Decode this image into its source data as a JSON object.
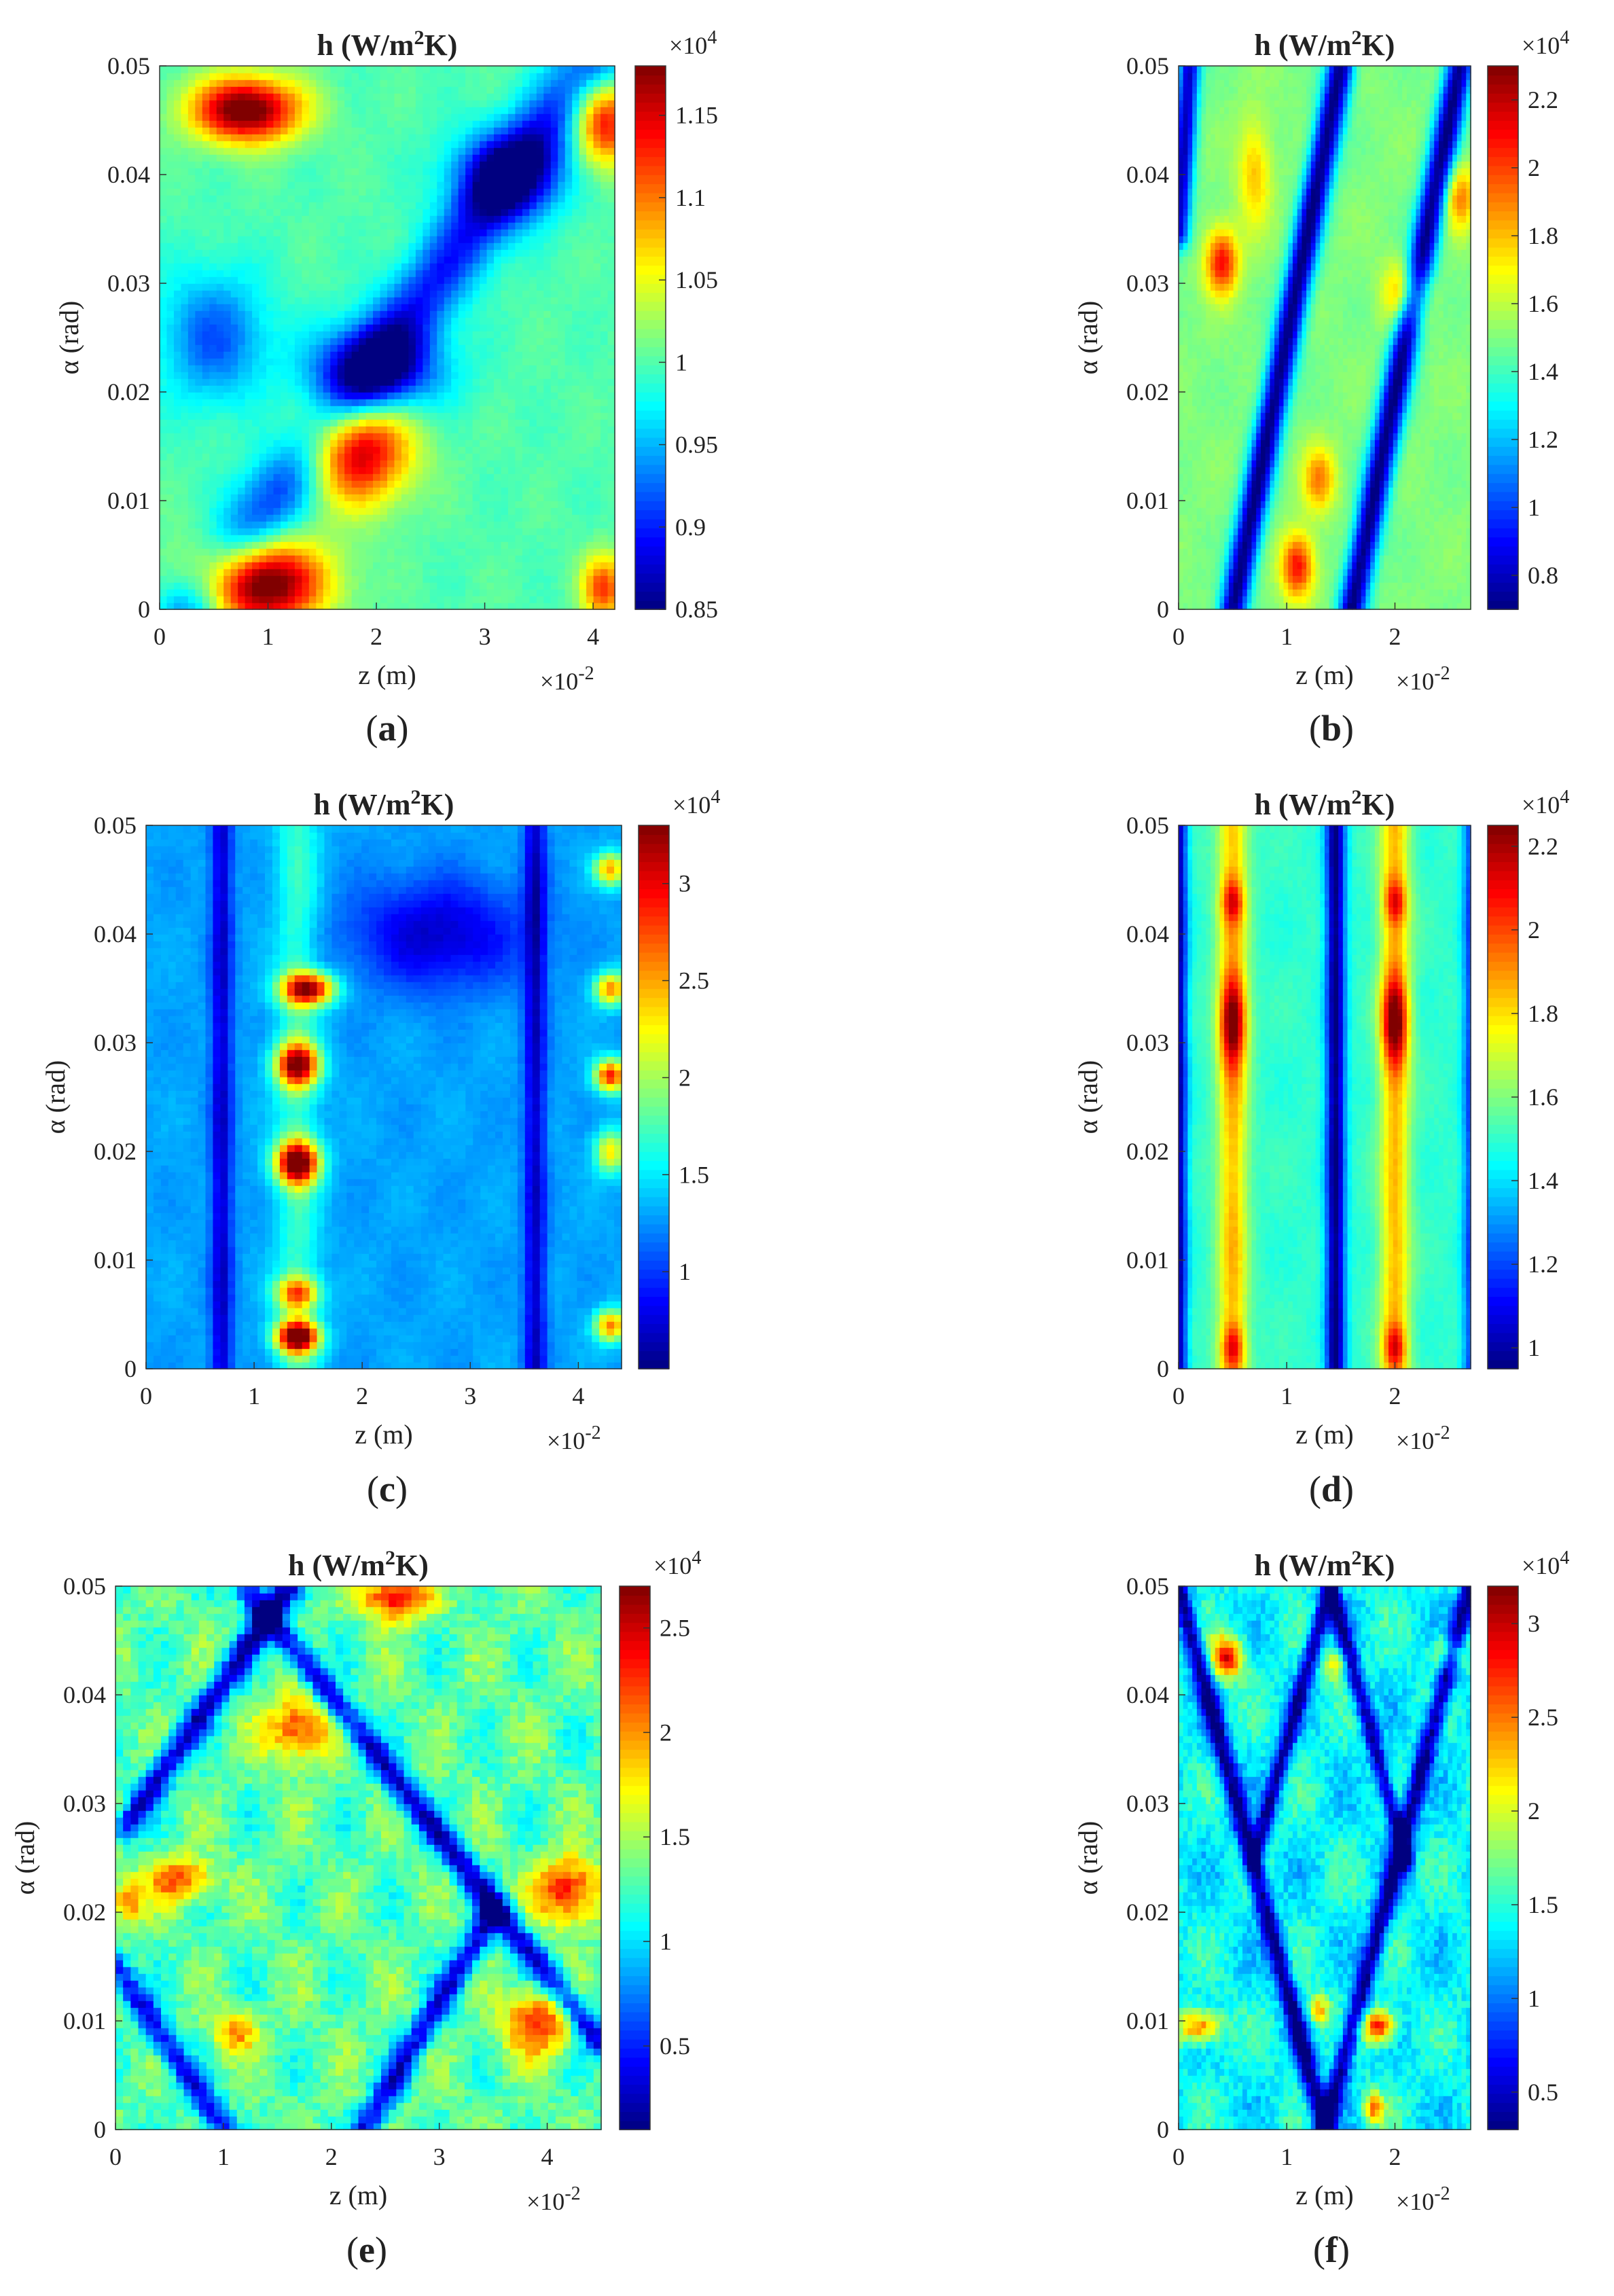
{
  "panels": [
    {
      "id": "a",
      "caption": "(a)",
      "caption_letter": "a",
      "title_prefix": "h (W/m",
      "title_sup": "2",
      "title_suffix": "K)",
      "xlabel": "z (m)",
      "ylabel": "α (rad)",
      "x_multiplier": "×10",
      "x_mult_exp": "-2",
      "cbar_multiplier": "×10",
      "cbar_mult_exp": "4",
      "chart_data": {
        "type": "heatmap",
        "xlim": [
          0,
          4.2
        ],
        "ylim": [
          0,
          0.05
        ],
        "clim": [
          0.85,
          1.18
        ],
        "xticks": [
          "0",
          "1",
          "2",
          "3",
          "4"
        ],
        "yticks": [
          "0",
          "0.01",
          "0.02",
          "0.03",
          "0.04",
          "0.05"
        ],
        "cbar_ticks": [
          "0.85",
          "0.9",
          "0.95",
          "1",
          "1.05",
          "1.1",
          "1.15"
        ],
        "pattern": "single diagonal low-h band with high-h lobes at z≈1 (α 0–0.02) and z≈0.8 (α≈0.047)",
        "base": 1.0,
        "features": [
          {
            "z": 0.9,
            "a": 0.0025,
            "v": 0.22,
            "sz": 0.6,
            "sa": 0.004
          },
          {
            "z": 1.8,
            "a": 0.015,
            "v": 0.18,
            "sz": 0.5,
            "sa": 0.005
          },
          {
            "z": 0.8,
            "a": 0.046,
            "v": 0.2,
            "sz": 0.5,
            "sa": 0.003
          },
          {
            "z": 4.1,
            "a": 0.045,
            "v": 0.15,
            "sz": 0.3,
            "sa": 0.004
          },
          {
            "z": 4.1,
            "a": 0.002,
            "v": 0.12,
            "sz": 0.2,
            "sa": 0.003
          },
          {
            "z": 2.0,
            "a": 0.022,
            "v": -0.13,
            "sz": 0.6,
            "sa": 0.004
          },
          {
            "z": 3.2,
            "a": 0.04,
            "v": -0.12,
            "sz": 0.5,
            "sa": 0.004
          },
          {
            "z": 0.5,
            "a": 0.025,
            "v": -0.08,
            "sz": 0.5,
            "sa": 0.006
          }
        ],
        "bands": [
          {
            "z0": 0.3,
            "a0": 0.0,
            "z1": 4.0,
            "a1": 0.05,
            "v": -0.1,
            "w": 0.3
          }
        ]
      }
    },
    {
      "id": "b",
      "caption": "(b)",
      "caption_letter": "b",
      "title_prefix": "h (W/m",
      "title_sup": "2",
      "title_suffix": "K)",
      "xlabel": "z (m)",
      "ylabel": "α (rad)",
      "x_multiplier": "×10",
      "x_mult_exp": "-2",
      "cbar_multiplier": "×10",
      "cbar_mult_exp": "4",
      "chart_data": {
        "type": "heatmap",
        "xlim": [
          0,
          2.7
        ],
        "ylim": [
          0,
          0.05
        ],
        "clim": [
          0.7,
          2.3
        ],
        "xticks": [
          "0",
          "1",
          "2"
        ],
        "yticks": [
          "0",
          "0.01",
          "0.02",
          "0.03",
          "0.04",
          "0.05"
        ],
        "cbar_ticks": [
          "0.8",
          "1",
          "1.2",
          "1.4",
          "1.6",
          "1.8",
          "2",
          "2.2"
        ],
        "pattern": "two parallel diagonal low-h bands",
        "base": 1.5,
        "features": [
          {
            "z": 0.4,
            "a": 0.032,
            "v": 0.6,
            "sz": 0.15,
            "sa": 0.003
          },
          {
            "z": 1.1,
            "a": 0.004,
            "v": 0.6,
            "sz": 0.15,
            "sa": 0.003
          },
          {
            "z": 1.3,
            "a": 0.012,
            "v": 0.4,
            "sz": 0.15,
            "sa": 0.003
          },
          {
            "z": 2.1,
            "a": 0.029,
            "v": 0.4,
            "sz": 0.2,
            "sa": 0.003
          },
          {
            "z": 2.6,
            "a": 0.038,
            "v": 0.4,
            "sz": 0.15,
            "sa": 0.003
          },
          {
            "z": 0.7,
            "a": 0.04,
            "v": 0.3,
            "sz": 0.15,
            "sa": 0.005
          }
        ],
        "bands": [
          {
            "z0": 0.1,
            "a0": 0.05,
            "z1": 0.0,
            "a1": 0.035,
            "v": -0.7,
            "w": 0.1
          },
          {
            "z0": 0.5,
            "a0": 0.0,
            "z1": 1.5,
            "a1": 0.05,
            "v": -0.8,
            "w": 0.12
          },
          {
            "z0": 1.6,
            "a0": 0.0,
            "z1": 2.6,
            "a1": 0.05,
            "v": -0.8,
            "w": 0.12
          }
        ]
      }
    },
    {
      "id": "c",
      "caption": "(c)",
      "caption_letter": "c",
      "title_prefix": "h (W/m",
      "title_sup": "2",
      "title_suffix": "K)",
      "xlabel": "z (m)",
      "ylabel": "α (rad)",
      "x_multiplier": "×10",
      "x_mult_exp": "-2",
      "cbar_multiplier": "×10",
      "cbar_mult_exp": "4",
      "chart_data": {
        "type": "heatmap",
        "xlim": [
          0,
          4.4
        ],
        "ylim": [
          0,
          0.05
        ],
        "clim": [
          0.5,
          3.3
        ],
        "xticks": [
          "0",
          "1",
          "2",
          "3",
          "4"
        ],
        "yticks": [
          "0",
          "0.01",
          "0.02",
          "0.03",
          "0.04",
          "0.05"
        ],
        "cbar_ticks": [
          "1",
          "1.5",
          "2",
          "2.5",
          "3"
        ],
        "pattern": "vertical bands; high-h spots at z≈1.4 and z≈4.3, low-h columns at z≈0.7 and z≈3.6",
        "base": 1.3,
        "features": [
          {
            "z": 1.4,
            "a": 0.003,
            "v": 2.0,
            "sz": 0.2,
            "sa": 0.0015
          },
          {
            "z": 1.4,
            "a": 0.007,
            "v": 1.2,
            "sz": 0.2,
            "sa": 0.0015
          },
          {
            "z": 1.4,
            "a": 0.019,
            "v": 2.0,
            "sz": 0.2,
            "sa": 0.002
          },
          {
            "z": 1.4,
            "a": 0.028,
            "v": 1.8,
            "sz": 0.2,
            "sa": 0.002
          },
          {
            "z": 1.5,
            "a": 0.035,
            "v": 1.8,
            "sz": 0.25,
            "sa": 0.0015
          },
          {
            "z": 4.3,
            "a": 0.035,
            "v": 1.3,
            "sz": 0.15,
            "sa": 0.0015
          },
          {
            "z": 4.3,
            "a": 0.027,
            "v": 1.6,
            "sz": 0.15,
            "sa": 0.0015
          },
          {
            "z": 4.3,
            "a": 0.02,
            "v": 1.0,
            "sz": 0.15,
            "sa": 0.002
          },
          {
            "z": 4.3,
            "a": 0.004,
            "v": 1.3,
            "sz": 0.15,
            "sa": 0.0015
          },
          {
            "z": 4.3,
            "a": 0.046,
            "v": 1.2,
            "sz": 0.15,
            "sa": 0.0015
          },
          {
            "z": 2.7,
            "a": 0.04,
            "v": -0.6,
            "sz": 0.8,
            "sa": 0.005
          }
        ],
        "bands": [
          {
            "z0": 0.7,
            "a0": 0.0,
            "z1": 0.7,
            "a1": 0.05,
            "v": -0.6,
            "w": 0.1
          },
          {
            "z0": 3.6,
            "a0": 0.0,
            "z1": 3.6,
            "a1": 0.05,
            "v": -0.6,
            "w": 0.1
          },
          {
            "z0": 1.4,
            "a0": 0.0,
            "z1": 1.4,
            "a1": 0.05,
            "v": 0.4,
            "w": 0.2
          }
        ]
      }
    },
    {
      "id": "d",
      "caption": "(d)",
      "caption_letter": "d",
      "title_prefix": "h (W/m",
      "title_sup": "2",
      "title_suffix": "K)",
      "xlabel": "z (m)",
      "ylabel": "α (rad)",
      "x_multiplier": "×10",
      "x_mult_exp": "-2",
      "cbar_multiplier": "×10",
      "cbar_mult_exp": "4",
      "chart_data": {
        "type": "heatmap",
        "xlim": [
          0,
          2.7
        ],
        "ylim": [
          0,
          0.05
        ],
        "clim": [
          0.95,
          2.25
        ],
        "xticks": [
          "0",
          "1",
          "2"
        ],
        "yticks": [
          "0",
          "0.01",
          "0.02",
          "0.03",
          "0.04",
          "0.05"
        ],
        "cbar_ticks": [
          "1",
          "1.2",
          "1.4",
          "1.6",
          "1.8",
          "2",
          "2.2"
        ],
        "pattern": "vertical stripes; high-h at z≈0.5 and z≈2.0, low-h at z≈0, 1.45, 2.7",
        "base": 1.5,
        "features": [
          {
            "z": 0.5,
            "a": 0.032,
            "v": 0.5,
            "sz": 0.12,
            "sa": 0.004
          },
          {
            "z": 2.0,
            "a": 0.032,
            "v": 0.5,
            "sz": 0.12,
            "sa": 0.004
          },
          {
            "z": 0.5,
            "a": 0.043,
            "v": 0.3,
            "sz": 0.1,
            "sa": 0.002
          },
          {
            "z": 2.0,
            "a": 0.043,
            "v": 0.3,
            "sz": 0.1,
            "sa": 0.002
          },
          {
            "z": 0.5,
            "a": 0.002,
            "v": 0.3,
            "sz": 0.1,
            "sa": 0.002
          },
          {
            "z": 2.0,
            "a": 0.002,
            "v": 0.3,
            "sz": 0.1,
            "sa": 0.002
          }
        ],
        "bands": [
          {
            "z0": 0.5,
            "a0": 0.0,
            "z1": 0.5,
            "a1": 0.05,
            "v": 0.35,
            "w": 0.14
          },
          {
            "z0": 2.0,
            "a0": 0.0,
            "z1": 2.0,
            "a1": 0.05,
            "v": 0.35,
            "w": 0.14
          },
          {
            "z0": 1.45,
            "a0": 0.0,
            "z1": 1.45,
            "a1": 0.05,
            "v": -0.55,
            "w": 0.09
          },
          {
            "z0": 0.0,
            "a0": 0.0,
            "z1": 0.0,
            "a1": 0.05,
            "v": -0.5,
            "w": 0.08
          },
          {
            "z0": 2.7,
            "a0": 0.0,
            "z1": 2.7,
            "a1": 0.05,
            "v": -0.3,
            "w": 0.08
          }
        ]
      }
    },
    {
      "id": "e",
      "caption": "(e)",
      "caption_letter": "e",
      "title_prefix": "h (W/m",
      "title_sup": "2",
      "title_suffix": "K)",
      "xlabel": "z (m)",
      "ylabel": "α (rad)",
      "x_multiplier": "×10",
      "x_mult_exp": "-2",
      "cbar_multiplier": "×10",
      "cbar_mult_exp": "4",
      "chart_data": {
        "type": "heatmap",
        "xlim": [
          0,
          4.5
        ],
        "ylim": [
          0,
          0.05
        ],
        "clim": [
          0.1,
          2.7
        ],
        "xticks": [
          "0",
          "1",
          "2",
          "3",
          "4"
        ],
        "yticks": [
          "0",
          "0.01",
          "0.02",
          "0.03",
          "0.04",
          "0.05"
        ],
        "cbar_ticks": [
          "0.5",
          "1",
          "1.5",
          "2",
          "2.5"
        ],
        "pattern": "crossing diagonal low-h bands with scattered high-h spots",
        "base": 1.3,
        "noise": 0.35,
        "features": [
          {
            "z": 2.6,
            "a": 0.049,
            "v": 1.2,
            "sz": 0.3,
            "sa": 0.002
          },
          {
            "z": 1.7,
            "a": 0.037,
            "v": 1.0,
            "sz": 0.3,
            "sa": 0.003
          },
          {
            "z": 0.6,
            "a": 0.023,
            "v": 0.9,
            "sz": 0.3,
            "sa": 0.002
          },
          {
            "z": 4.2,
            "a": 0.022,
            "v": 1.1,
            "sz": 0.3,
            "sa": 0.003
          },
          {
            "z": 3.9,
            "a": 0.01,
            "v": 1.0,
            "sz": 0.3,
            "sa": 0.003
          },
          {
            "z": 1.1,
            "a": 0.009,
            "v": 0.7,
            "sz": 0.2,
            "sa": 0.002
          },
          {
            "z": 0.1,
            "a": 0.021,
            "v": 0.8,
            "sz": 0.15,
            "sa": 0.002
          }
        ],
        "bands": [
          {
            "z0": 1.2,
            "a0": 0.05,
            "z1": 4.5,
            "a1": 0.008,
            "v": -1.0,
            "w": 0.12
          },
          {
            "z0": 0.1,
            "a0": 0.028,
            "z1": 1.6,
            "a1": 0.05,
            "v": -1.0,
            "w": 0.12
          },
          {
            "z0": 0.0,
            "a0": 0.015,
            "z1": 1.0,
            "a1": 0.0,
            "v": -0.9,
            "w": 0.12
          },
          {
            "z0": 2.3,
            "a0": 0.0,
            "z1": 3.5,
            "a1": 0.02,
            "v": -0.9,
            "w": 0.12
          }
        ]
      }
    },
    {
      "id": "f",
      "caption": "(f)",
      "caption_letter": "f",
      "title_prefix": "h (W/m",
      "title_sup": "2",
      "title_suffix": "K)",
      "xlabel": "z (m)",
      "ylabel": "α (rad)",
      "x_multiplier": "×10",
      "x_mult_exp": "-2",
      "cbar_multiplier": "×10",
      "cbar_mult_exp": "4",
      "chart_data": {
        "type": "heatmap",
        "xlim": [
          0,
          2.7
        ],
        "ylim": [
          0,
          0.05
        ],
        "clim": [
          0.3,
          3.2
        ],
        "xticks": [
          "0",
          "1",
          "2"
        ],
        "yticks": [
          "0",
          "0.01",
          "0.02",
          "0.03",
          "0.04",
          "0.05"
        ],
        "cbar_ticks": [
          "0.5",
          "1",
          "1.5",
          "2",
          "2.5",
          "3"
        ],
        "pattern": "X-shaped crossing low-h bands with scattered high-h spots",
        "base": 1.4,
        "noise": 0.35,
        "features": [
          {
            "z": 0.45,
            "a": 0.0435,
            "v": 1.5,
            "sz": 0.15,
            "sa": 0.002
          },
          {
            "z": 1.85,
            "a": 0.0095,
            "v": 1.5,
            "sz": 0.15,
            "sa": 0.0015
          },
          {
            "z": 0.2,
            "a": 0.0095,
            "v": 1.2,
            "sz": 0.2,
            "sa": 0.0015
          },
          {
            "z": 1.8,
            "a": 0.002,
            "v": 1.0,
            "sz": 0.1,
            "sa": 0.0015
          },
          {
            "z": 1.3,
            "a": 0.011,
            "v": 0.9,
            "sz": 0.1,
            "sa": 0.0015
          },
          {
            "z": 2.5,
            "a": 0.044,
            "v": 0.8,
            "sz": 0.15,
            "sa": 0.0015
          },
          {
            "z": 1.45,
            "a": 0.043,
            "v": 0.8,
            "sz": 0.1,
            "sa": 0.0015
          }
        ],
        "bands": [
          {
            "z0": 0.0,
            "a0": 0.05,
            "z1": 1.35,
            "a1": 0.0,
            "v": -1.1,
            "w": 0.08
          },
          {
            "z0": 1.35,
            "a0": 0.0,
            "z1": 2.7,
            "a1": 0.05,
            "v": -1.1,
            "w": 0.08
          },
          {
            "z0": 1.4,
            "a0": 0.05,
            "z1": 0.7,
            "a1": 0.025,
            "v": -1.0,
            "w": 0.07
          },
          {
            "z0": 1.4,
            "a0": 0.05,
            "z1": 2.1,
            "a1": 0.025,
            "v": -1.0,
            "w": 0.07
          }
        ]
      }
    }
  ]
}
